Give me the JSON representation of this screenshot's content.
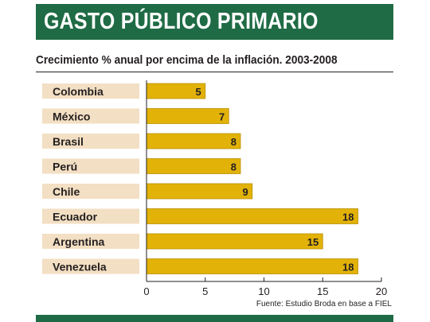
{
  "header": {
    "title": "GASTO PÚBLICO PRIMARIO",
    "subtitle": "Crecimiento % anual por encima de la inflación. 2003-2008"
  },
  "source": "Fuente: Estudio Broda en base a FIEL",
  "colors": {
    "title_bg": "#1f6b45",
    "label_bg": "#f3dfc3",
    "bar": "#e2b208",
    "bar_edge": "#b98f00"
  },
  "chart_data": {
    "type": "bar",
    "orientation": "horizontal",
    "categories": [
      "Colombia",
      "México",
      "Brasil",
      "Perú",
      "Chile",
      "Ecuador",
      "Argentina",
      "Venezuela"
    ],
    "values": [
      5,
      7,
      8,
      8,
      9,
      18,
      15,
      18
    ],
    "xlim": [
      0,
      20
    ],
    "xticks": [
      0,
      5,
      10,
      15,
      20
    ],
    "grid": false,
    "data_labels": true
  }
}
